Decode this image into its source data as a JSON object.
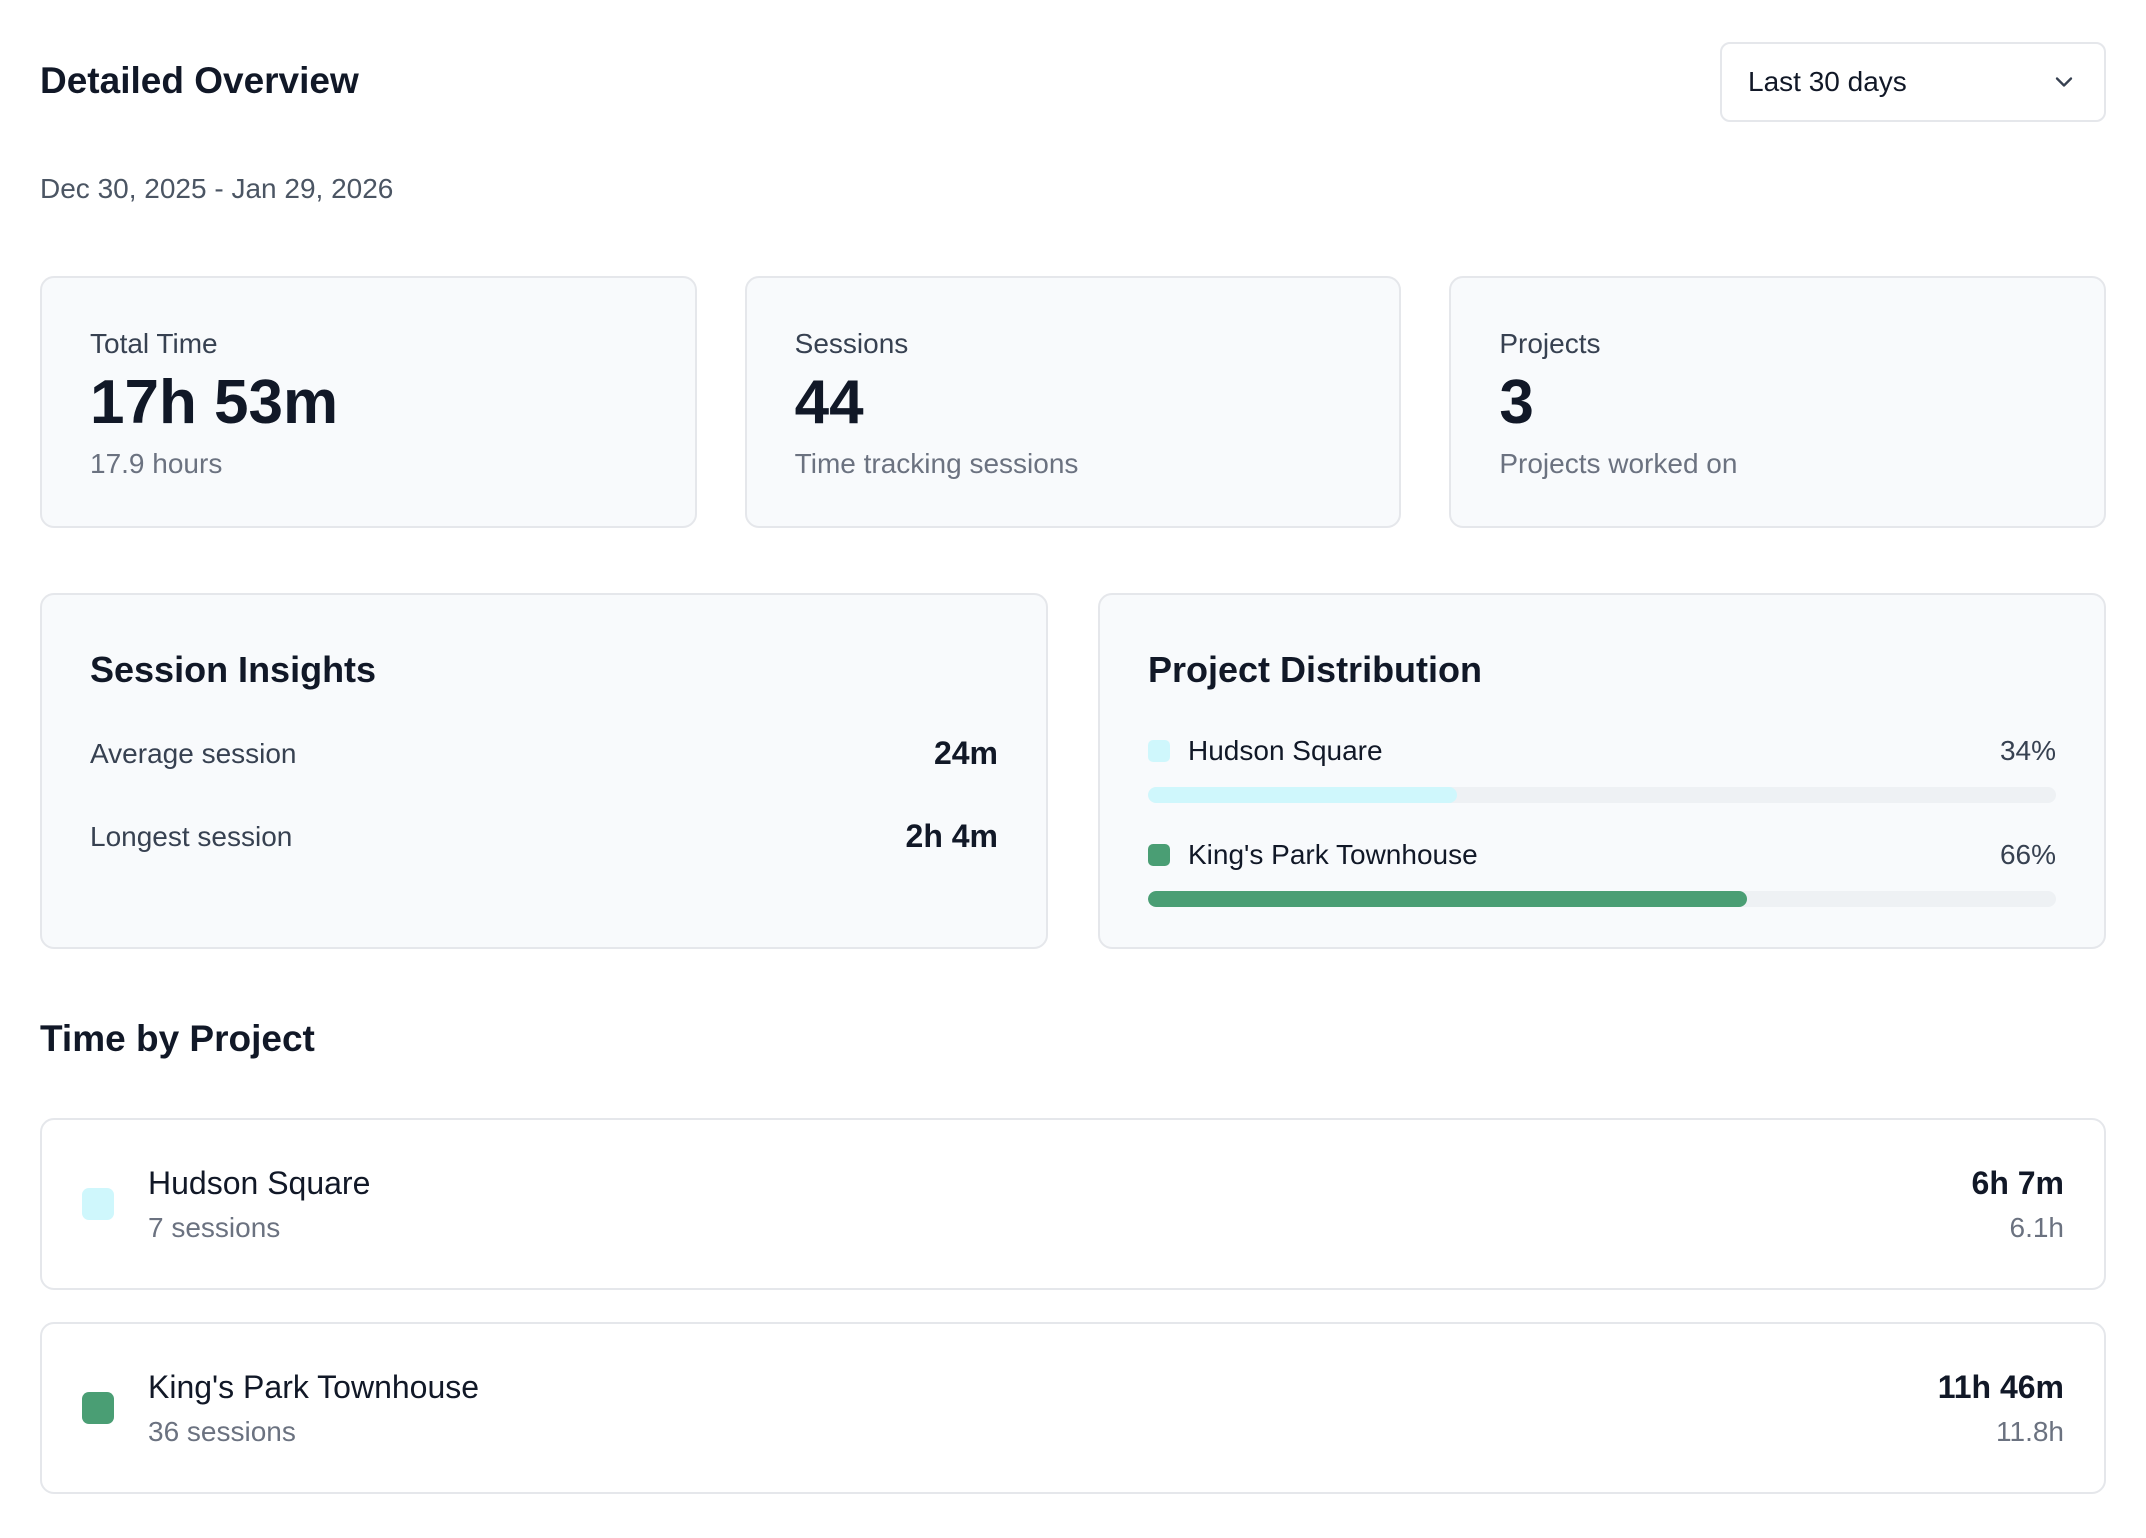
{
  "header": {
    "title": "Detailed Overview",
    "range_select": {
      "selected": "Last 30 days",
      "icon": "chevron-down-icon"
    }
  },
  "date_range": "Dec 30, 2025 - Jan 29, 2026",
  "stats": [
    {
      "label": "Total Time",
      "value": "17h 53m",
      "sub": "17.9 hours"
    },
    {
      "label": "Sessions",
      "value": "44",
      "sub": "Time tracking sessions"
    },
    {
      "label": "Projects",
      "value": "3",
      "sub": "Projects worked on"
    }
  ],
  "insights": {
    "title": "Session Insights",
    "rows": [
      {
        "label": "Average session",
        "value": "24m"
      },
      {
        "label": "Longest session",
        "value": "2h 4m"
      }
    ]
  },
  "distribution": {
    "title": "Project Distribution",
    "items": [
      {
        "name": "Hudson Square",
        "pct": "34%",
        "fraction": 0.34,
        "color": "#cff7fc"
      },
      {
        "name": "King's Park Townhouse",
        "pct": "66%",
        "fraction": 0.66,
        "color": "#4a9e74"
      }
    ]
  },
  "time_by_project": {
    "title": "Time by Project",
    "projects": [
      {
        "name": "Hudson Square",
        "sessions": "7 sessions",
        "time": "6h 7m",
        "hours": "6.1h",
        "color": "#cff7fc"
      },
      {
        "name": "King's Park Townhouse",
        "sessions": "36 sessions",
        "time": "11h 46m",
        "hours": "11.8h",
        "color": "#4a9e74"
      }
    ]
  }
}
